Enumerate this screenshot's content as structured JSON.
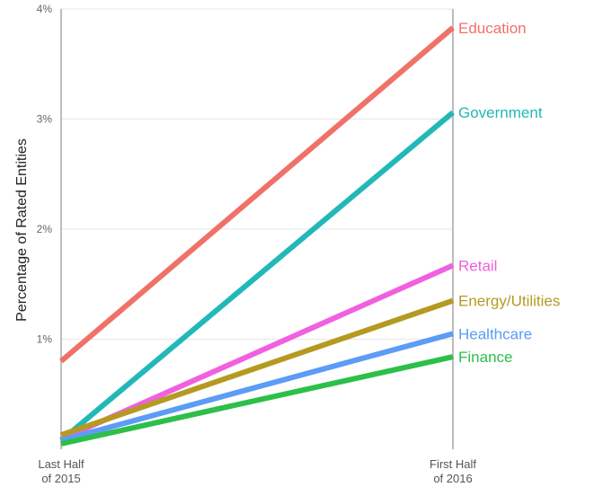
{
  "chart_data": {
    "type": "line",
    "title": "",
    "ylabel": "Percentage of Rated Entities",
    "xlabel": "",
    "categories": [
      [
        "Last Half",
        "of 2015"
      ],
      [
        "First Half",
        "of 2016"
      ]
    ],
    "ylim": [
      0,
      4
    ],
    "yticks": [
      {
        "value": 1,
        "label": "1%"
      },
      {
        "value": 2,
        "label": "2%"
      },
      {
        "value": 3,
        "label": "3%"
      },
      {
        "value": 4,
        "label": "4%"
      }
    ],
    "grid": true,
    "legend": "direct-labels-right",
    "series": [
      {
        "name": "Education",
        "color": "#f07167",
        "values": [
          0.8,
          3.83
        ]
      },
      {
        "name": "Government",
        "color": "#22b8b8",
        "values": [
          0.08,
          3.06
        ]
      },
      {
        "name": "Retail",
        "color": "#f060e0",
        "values": [
          0.09,
          1.67
        ]
      },
      {
        "name": "Energy/Utilities",
        "color": "#b59a22",
        "values": [
          0.13,
          1.35
        ]
      },
      {
        "name": "Healthcare",
        "color": "#5b9cf6",
        "values": [
          0.08,
          1.05
        ]
      },
      {
        "name": "Finance",
        "color": "#2cbf4a",
        "values": [
          0.05,
          0.84
        ]
      }
    ]
  }
}
